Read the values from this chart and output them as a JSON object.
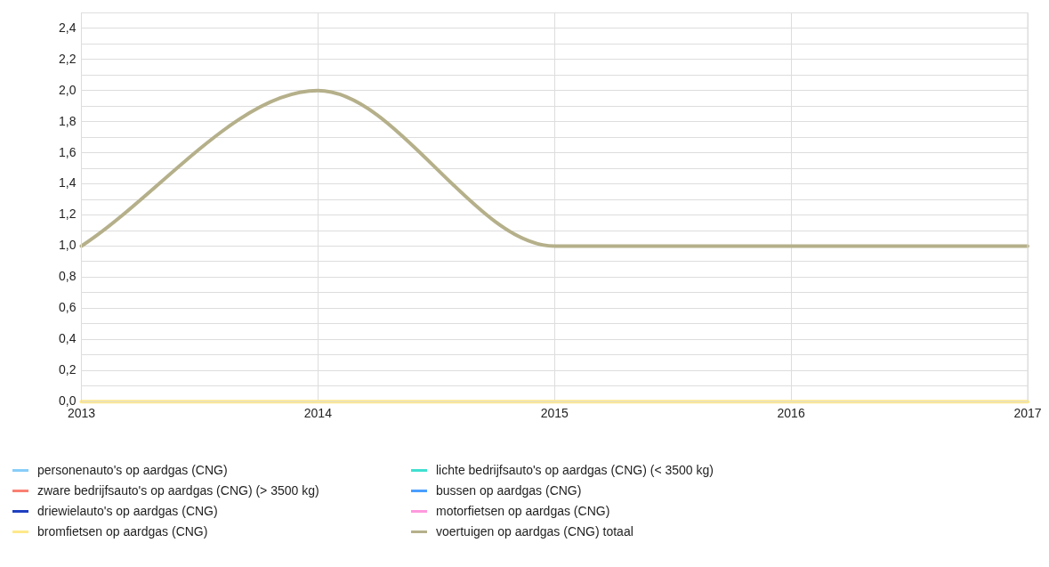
{
  "chart_data": {
    "type": "line",
    "x": [
      2013,
      2014,
      2015,
      2016,
      2017
    ],
    "xlim": [
      2013,
      2017
    ],
    "xticks": [
      2013,
      2014,
      2015,
      2016,
      2017
    ],
    "ylim": [
      0,
      2.5
    ],
    "yticks": [
      {
        "value": 0,
        "label": "0,0"
      },
      {
        "value": 0.1,
        "label": null
      },
      {
        "value": 0.2,
        "label": "0,2"
      },
      {
        "value": 0.3,
        "label": null
      },
      {
        "value": 0.4,
        "label": "0,4"
      },
      {
        "value": 0.5,
        "label": null
      },
      {
        "value": 0.6,
        "label": "0,6"
      },
      {
        "value": 0.7,
        "label": null
      },
      {
        "value": 0.8,
        "label": "0,8"
      },
      {
        "value": 0.9,
        "label": null
      },
      {
        "value": 1.0,
        "label": "1,0"
      },
      {
        "value": 1.1,
        "label": null
      },
      {
        "value": 1.2,
        "label": "1,2"
      },
      {
        "value": 1.3,
        "label": null
      },
      {
        "value": 1.4,
        "label": "1,4"
      },
      {
        "value": 1.5,
        "label": null
      },
      {
        "value": 1.6,
        "label": "1,6"
      },
      {
        "value": 1.7,
        "label": null
      },
      {
        "value": 1.8,
        "label": "1,8"
      },
      {
        "value": 1.9,
        "label": null
      },
      {
        "value": 2.0,
        "label": "2,0"
      },
      {
        "value": 2.1,
        "label": null
      },
      {
        "value": 2.2,
        "label": "2,2"
      },
      {
        "value": 2.3,
        "label": null
      },
      {
        "value": 2.4,
        "label": "2,4"
      }
    ],
    "grid": true,
    "legend": "bottom",
    "marker": "none",
    "line_style": "solid",
    "series": [
      {
        "name": "personenauto's op aardgas (CNG)",
        "color": "#87cefa",
        "values": [
          null,
          null,
          null,
          null,
          null
        ]
      },
      {
        "name": "lichte bedrijfsauto's op aardgas (CNG) (< 3500 kg)",
        "color": "#40e0d0",
        "values": [
          null,
          null,
          null,
          null,
          null
        ]
      },
      {
        "name": "zware bedrijfsauto's op aardgas (CNG) (> 3500 kg)",
        "color": "#fa8072",
        "values": [
          null,
          null,
          null,
          null,
          null
        ]
      },
      {
        "name": "bussen op aardgas (CNG)",
        "color": "#4a9eff",
        "values": [
          null,
          null,
          null,
          null,
          null
        ]
      },
      {
        "name": "driewielauto's op aardgas (CNG)",
        "color": "#1e3fc0",
        "values": [
          null,
          null,
          null,
          null,
          null
        ]
      },
      {
        "name": "motorfietsen op aardgas (CNG)",
        "color": "#ff99dd",
        "values": [
          null,
          null,
          null,
          null,
          null
        ]
      },
      {
        "name": "bromfietsen op aardgas (CNG)",
        "color": "#ffe88a",
        "values": [
          0,
          0,
          0,
          0,
          0
        ]
      },
      {
        "name": "voertuigen op aardgas (CNG) totaal",
        "color": "#b5b08a",
        "values": [
          1,
          2,
          1,
          1,
          1
        ]
      }
    ]
  }
}
